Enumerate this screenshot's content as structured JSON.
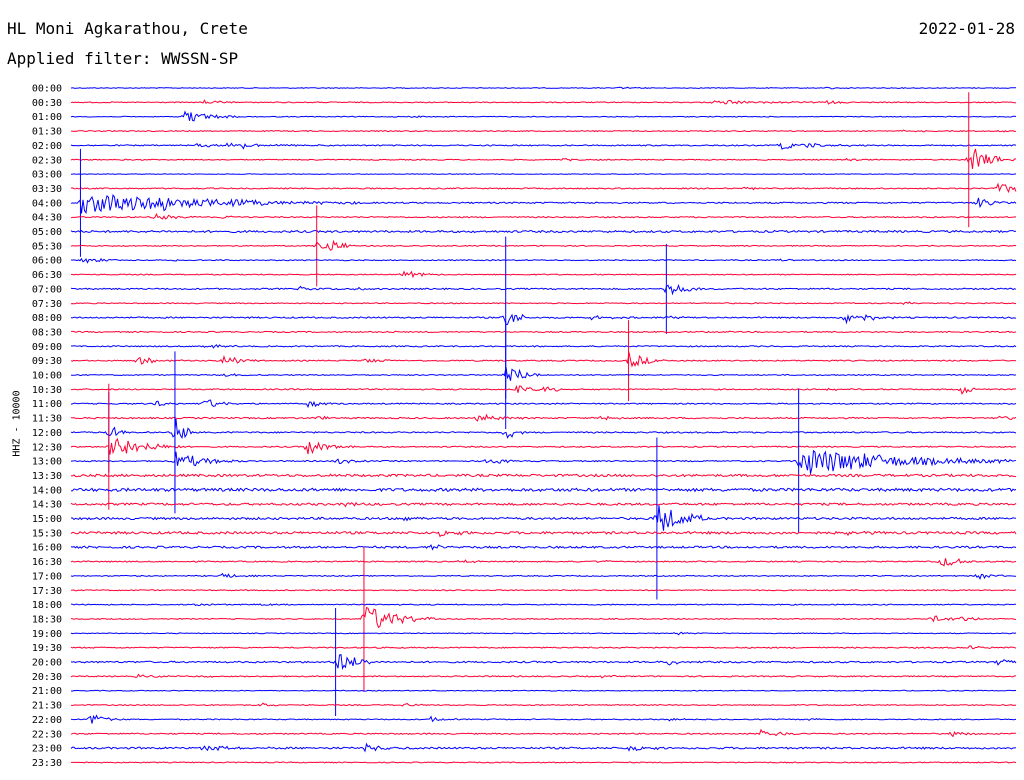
{
  "header": {
    "station": "HL Moni Agkarathou, Crete",
    "date": "2022-01-28",
    "filter": "Applied filter: WWSSN-SP"
  },
  "yaxis_label": "HHZ - 10000",
  "colors": {
    "blue": "#0000ff",
    "red": "#ff0033"
  },
  "chart_data": {
    "type": "line",
    "title": "HL Moni Agkarathou, Crete",
    "ylabel": "HHZ - 10000",
    "rows": [
      {
        "label": "00:00",
        "color": "blue",
        "noise": 0.4,
        "events": [
          [
            80,
            1.5,
            3
          ],
          [
            58,
            1.2,
            3
          ]
        ]
      },
      {
        "label": "00:30",
        "color": "red",
        "noise": 0.5,
        "events": [
          [
            14,
            2,
            4
          ],
          [
            68,
            2.5,
            12
          ],
          [
            80,
            1.5,
            4
          ]
        ]
      },
      {
        "label": "01:00",
        "color": "blue",
        "noise": 0.4,
        "events": [
          [
            12,
            7,
            6
          ],
          [
            36,
            1.5,
            3
          ]
        ]
      },
      {
        "label": "01:30",
        "color": "red",
        "noise": 0.5,
        "events": [
          [
            88,
            1.5,
            3
          ],
          [
            98,
            1.5,
            3
          ]
        ]
      },
      {
        "label": "02:00",
        "color": "blue",
        "noise": 0.6,
        "events": [
          [
            13,
            2,
            18
          ],
          [
            16,
            2,
            5
          ],
          [
            18,
            3,
            4
          ],
          [
            75,
            4,
            8
          ],
          [
            78,
            2,
            6
          ]
        ]
      },
      {
        "label": "02:30",
        "color": "red",
        "noise": 0.5,
        "events": [
          [
            52,
            1.5,
            3
          ],
          [
            82,
            1.5,
            3
          ],
          [
            95,
            15,
            5
          ]
        ]
      },
      {
        "label": "03:00",
        "color": "blue",
        "noise": 0.3,
        "events": []
      },
      {
        "label": "03:30",
        "color": "red",
        "noise": 0.6,
        "events": [
          [
            71,
            1.5,
            4
          ],
          [
            98,
            5,
            25
          ]
        ]
      },
      {
        "label": "04:00",
        "color": "blue",
        "noise": 0.7,
        "events": [
          [
            1,
            12,
            30
          ],
          [
            8,
            5,
            6
          ],
          [
            16,
            3,
            4
          ],
          [
            60,
            1.5,
            3
          ],
          [
            96,
            5,
            4
          ]
        ]
      },
      {
        "label": "04:30",
        "color": "red",
        "noise": 0.6,
        "events": [
          [
            9,
            3,
            5
          ],
          [
            16,
            2,
            3
          ]
        ]
      },
      {
        "label": "05:00",
        "color": "blue",
        "noise": 1.0,
        "events": []
      },
      {
        "label": "05:30",
        "color": "red",
        "noise": 0.5,
        "events": [
          [
            26,
            9,
            4
          ],
          [
            27,
            6,
            4
          ]
        ]
      },
      {
        "label": "06:00",
        "color": "blue",
        "noise": 0.5,
        "events": [
          [
            1,
            3,
            6
          ],
          [
            10,
            1.5,
            3
          ],
          [
            75,
            1.5,
            3
          ]
        ]
      },
      {
        "label": "06:30",
        "color": "red",
        "noise": 0.5,
        "events": [
          [
            35,
            3,
            4
          ],
          [
            36,
            3,
            4
          ]
        ]
      },
      {
        "label": "07:00",
        "color": "blue",
        "noise": 0.7,
        "events": [
          [
            24,
            2,
            6
          ],
          [
            63,
            10,
            4
          ],
          [
            30,
            1.5,
            3
          ]
        ]
      },
      {
        "label": "07:30",
        "color": "red",
        "noise": 0.5,
        "events": [
          [
            88,
            1.5,
            3
          ]
        ]
      },
      {
        "label": "08:00",
        "color": "blue",
        "noise": 0.7,
        "events": [
          [
            46,
            18,
            2
          ],
          [
            55,
            2,
            5
          ],
          [
            63,
            2,
            4
          ],
          [
            82,
            7,
            6
          ]
        ]
      },
      {
        "label": "08:30",
        "color": "red",
        "noise": 0.6,
        "events": [
          [
            33,
            1.5,
            3
          ],
          [
            67,
            1.5,
            3
          ]
        ]
      },
      {
        "label": "09:00",
        "color": "blue",
        "noise": 0.6,
        "events": [
          [
            14,
            2,
            5
          ]
        ]
      },
      {
        "label": "09:30",
        "color": "red",
        "noise": 0.6,
        "events": [
          [
            7,
            4,
            5
          ],
          [
            16,
            6,
            4
          ],
          [
            31,
            3,
            4
          ],
          [
            59,
            9,
            4
          ]
        ]
      },
      {
        "label": "10:00",
        "color": "blue",
        "noise": 0.5,
        "events": [
          [
            46,
            12,
            4
          ],
          [
            16,
            2,
            3
          ]
        ]
      },
      {
        "label": "10:30",
        "color": "red",
        "noise": 0.6,
        "events": [
          [
            47,
            4,
            6
          ],
          [
            50,
            3,
            4
          ],
          [
            80,
            2,
            3
          ],
          [
            94,
            6,
            3
          ]
        ]
      },
      {
        "label": "11:00",
        "color": "blue",
        "noise": 0.6,
        "events": [
          [
            9,
            3,
            3
          ],
          [
            14,
            6,
            4
          ],
          [
            25,
            4,
            3
          ]
        ]
      },
      {
        "label": "11:30",
        "color": "red",
        "noise": 0.7,
        "events": [
          [
            26,
            2,
            3
          ],
          [
            43,
            5,
            5
          ],
          [
            56,
            3,
            3
          ],
          [
            98,
            2,
            8
          ]
        ]
      },
      {
        "label": "12:00",
        "color": "blue",
        "noise": 0.7,
        "events": [
          [
            4,
            9,
            2
          ],
          [
            11,
            18,
            2
          ],
          [
            46,
            8,
            2
          ]
        ]
      },
      {
        "label": "12:30",
        "color": "red",
        "noise": 0.6,
        "events": [
          [
            4,
            14,
            8
          ],
          [
            25,
            8,
            5
          ]
        ]
      },
      {
        "label": "13:00",
        "color": "blue",
        "noise": 0.6,
        "events": [
          [
            11,
            10,
            7
          ],
          [
            28,
            3,
            4
          ],
          [
            44,
            4,
            4
          ],
          [
            77,
            16,
            25
          ]
        ]
      },
      {
        "label": "13:30",
        "color": "red",
        "noise": 1.2,
        "events": []
      },
      {
        "label": "14:00",
        "color": "blue",
        "noise": 1.5,
        "events": []
      },
      {
        "label": "14:30",
        "color": "red",
        "noise": 1.1,
        "events": [
          [
            29,
            3,
            4
          ]
        ]
      },
      {
        "label": "15:00",
        "color": "blue",
        "noise": 1.1,
        "events": [
          [
            35,
            3,
            4
          ],
          [
            62,
            18,
            6
          ]
        ]
      },
      {
        "label": "15:30",
        "color": "red",
        "noise": 1.2,
        "events": [
          [
            39,
            3,
            5
          ],
          [
            82,
            2,
            4
          ]
        ]
      },
      {
        "label": "16:00",
        "color": "blue",
        "noise": 1.0,
        "events": [
          [
            38,
            3,
            4
          ]
        ]
      },
      {
        "label": "16:30",
        "color": "red",
        "noise": 0.6,
        "events": [
          [
            41,
            2,
            4
          ],
          [
            55,
            2,
            3
          ],
          [
            92,
            6,
            5
          ]
        ]
      },
      {
        "label": "17:00",
        "color": "blue",
        "noise": 0.5,
        "events": [
          [
            16,
            3,
            4
          ],
          [
            96,
            4,
            3
          ]
        ]
      },
      {
        "label": "17:30",
        "color": "red",
        "noise": 0.5,
        "events": []
      },
      {
        "label": "18:00",
        "color": "blue",
        "noise": 0.5,
        "events": [
          [
            13,
            2,
            4
          ],
          [
            19,
            1.5,
            5
          ]
        ]
      },
      {
        "label": "18:30",
        "color": "red",
        "noise": 0.5,
        "events": [
          [
            31,
            16,
            8
          ],
          [
            91,
            4,
            5
          ],
          [
            94,
            3,
            3
          ]
        ]
      },
      {
        "label": "19:00",
        "color": "blue",
        "noise": 0.4,
        "events": [
          [
            64,
            1.5,
            3
          ]
        ]
      },
      {
        "label": "19:30",
        "color": "red",
        "noise": 0.6,
        "events": [
          [
            95,
            2,
            4
          ]
        ]
      },
      {
        "label": "20:00",
        "color": "blue",
        "noise": 0.8,
        "events": [
          [
            28,
            12,
            5
          ],
          [
            63,
            3,
            4
          ],
          [
            98,
            4,
            3
          ]
        ]
      },
      {
        "label": "20:30",
        "color": "red",
        "noise": 0.6,
        "events": [
          [
            7,
            2,
            6
          ],
          [
            14,
            2,
            3
          ],
          [
            56,
            1.5,
            3
          ]
        ]
      },
      {
        "label": "21:00",
        "color": "blue",
        "noise": 0.4,
        "events": []
      },
      {
        "label": "21:30",
        "color": "red",
        "noise": 0.5,
        "events": [
          [
            20,
            2,
            3
          ],
          [
            35,
            2,
            3
          ]
        ]
      },
      {
        "label": "22:00",
        "color": "blue",
        "noise": 0.5,
        "events": [
          [
            2,
            6,
            4
          ],
          [
            38,
            3,
            3
          ],
          [
            63,
            2,
            3
          ],
          [
            78,
            2,
            3
          ]
        ]
      },
      {
        "label": "22:30",
        "color": "red",
        "noise": 0.6,
        "events": [
          [
            73,
            5,
            5
          ],
          [
            93,
            3,
            4
          ]
        ]
      },
      {
        "label": "23:00",
        "color": "blue",
        "noise": 0.9,
        "events": [
          [
            14,
            3,
            8
          ],
          [
            31,
            4,
            5
          ],
          [
            59,
            3,
            4
          ]
        ]
      },
      {
        "label": "23:30",
        "color": "red",
        "noise": 0.5,
        "events": []
      }
    ]
  }
}
